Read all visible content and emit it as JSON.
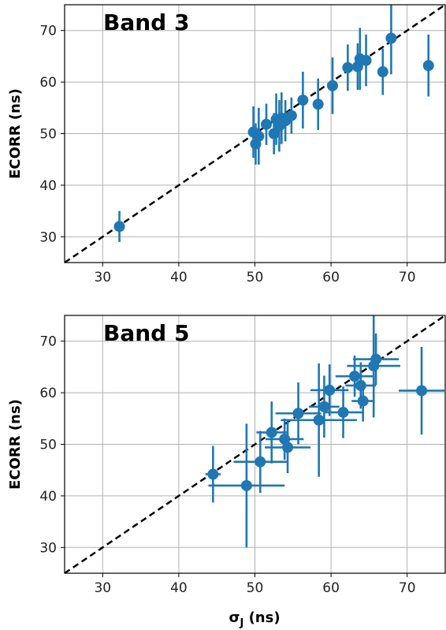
{
  "chart_data": [
    {
      "type": "scatter",
      "title": "Band 3",
      "xlabel": "",
      "ylabel": "ECORR (ns)",
      "xlim": [
        25,
        75
      ],
      "ylim": [
        25,
        75
      ],
      "xticks": [
        "30",
        "40",
        "50",
        "60",
        "70"
      ],
      "yticks": [
        "30",
        "40",
        "50",
        "60",
        "70"
      ],
      "grid": true,
      "reference_line": "y = x",
      "colors": {
        "points": "#1f77b4",
        "reference": "#000000",
        "grid": "#b0b0b0"
      },
      "points": [
        {
          "x": 32.2,
          "y": 32.0,
          "xerr": 0.0,
          "yerr": 3.0
        },
        {
          "x": 49.8,
          "y": 50.3,
          "xerr": 0.0,
          "yerr": 5.0
        },
        {
          "x": 50.1,
          "y": 48.0,
          "xerr": 0.0,
          "yerr": 4.0
        },
        {
          "x": 50.5,
          "y": 49.5,
          "xerr": 0.0,
          "yerr": 5.5
        },
        {
          "x": 51.5,
          "y": 51.8,
          "xerr": 0.0,
          "yerr": 4.0
        },
        {
          "x": 52.5,
          "y": 50.0,
          "xerr": 0.0,
          "yerr": 4.0
        },
        {
          "x": 52.8,
          "y": 52.8,
          "xerr": 0.0,
          "yerr": 5.0
        },
        {
          "x": 53.2,
          "y": 51.5,
          "xerr": 0.0,
          "yerr": 5.0
        },
        {
          "x": 53.5,
          "y": 53.0,
          "xerr": 0.0,
          "yerr": 5.0
        },
        {
          "x": 54.0,
          "y": 52.5,
          "xerr": 0.0,
          "yerr": 4.0
        },
        {
          "x": 54.8,
          "y": 53.5,
          "xerr": 0.0,
          "yerr": 3.5
        },
        {
          "x": 56.3,
          "y": 56.5,
          "xerr": 0.0,
          "yerr": 5.5
        },
        {
          "x": 58.3,
          "y": 55.7,
          "xerr": 0.0,
          "yerr": 5.0
        },
        {
          "x": 60.2,
          "y": 59.3,
          "xerr": 0.0,
          "yerr": 5.5
        },
        {
          "x": 62.2,
          "y": 62.8,
          "xerr": 0.0,
          "yerr": 4.5
        },
        {
          "x": 63.5,
          "y": 63.0,
          "xerr": 0.0,
          "yerr": 4.5
        },
        {
          "x": 63.8,
          "y": 64.5,
          "xerr": 0.0,
          "yerr": 6.0
        },
        {
          "x": 64.6,
          "y": 64.2,
          "xerr": 0.0,
          "yerr": 5.0
        },
        {
          "x": 66.8,
          "y": 62.0,
          "xerr": 0.0,
          "yerr": 4.5
        },
        {
          "x": 67.9,
          "y": 68.5,
          "xerr": 0.0,
          "yerr": 7.0
        },
        {
          "x": 72.8,
          "y": 63.2,
          "xerr": 0.5,
          "yerr": 6.0
        }
      ]
    },
    {
      "type": "scatter",
      "title": "Band 5",
      "xlabel": "σJ (ns)",
      "xlabel_main": "σ",
      "xlabel_sub": "J",
      "xlabel_unit": " (ns)",
      "ylabel": "ECORR (ns)",
      "xlim": [
        25,
        75
      ],
      "ylim": [
        25,
        75
      ],
      "xticks": [
        "30",
        "40",
        "50",
        "60",
        "70"
      ],
      "yticks": [
        "30",
        "40",
        "50",
        "60",
        "70"
      ],
      "grid": true,
      "reference_line": "y = x",
      "colors": {
        "points": "#1f77b4",
        "reference": "#000000",
        "grid": "#b0b0b0"
      },
      "points": [
        {
          "x": 44.5,
          "y": 44.2,
          "xerr": 1.0,
          "yerr": 5.5
        },
        {
          "x": 48.9,
          "y": 42.0,
          "xerr": 5.0,
          "yerr": 12.0
        },
        {
          "x": 50.7,
          "y": 46.6,
          "xerr": 3.5,
          "yerr": 6.0
        },
        {
          "x": 52.2,
          "y": 52.3,
          "xerr": 2.0,
          "yerr": 6.0
        },
        {
          "x": 53.9,
          "y": 51.0,
          "xerr": 2.5,
          "yerr": 4.0
        },
        {
          "x": 54.3,
          "y": 49.4,
          "xerr": 3.0,
          "yerr": 5.0
        },
        {
          "x": 55.7,
          "y": 56.0,
          "xerr": 3.0,
          "yerr": 6.0
        },
        {
          "x": 58.4,
          "y": 54.7,
          "xerr": 5.0,
          "yerr": 11.0
        },
        {
          "x": 59.1,
          "y": 57.3,
          "xerr": 2.0,
          "yerr": 6.0
        },
        {
          "x": 59.8,
          "y": 60.5,
          "xerr": 2.5,
          "yerr": 5.0
        },
        {
          "x": 61.6,
          "y": 56.2,
          "xerr": 2.5,
          "yerr": 5.0
        },
        {
          "x": 63.1,
          "y": 63.2,
          "xerr": 2.5,
          "yerr": 4.0
        },
        {
          "x": 63.9,
          "y": 61.4,
          "xerr": 2.0,
          "yerr": 4.5
        },
        {
          "x": 64.2,
          "y": 58.4,
          "xerr": 1.5,
          "yerr": 4.0
        },
        {
          "x": 65.6,
          "y": 65.2,
          "xerr": 3.5,
          "yerr": 10.0
        },
        {
          "x": 65.9,
          "y": 66.5,
          "xerr": 3.0,
          "yerr": 5.0
        },
        {
          "x": 71.9,
          "y": 60.4,
          "xerr": 3.0,
          "yerr": 8.5
        }
      ]
    }
  ]
}
